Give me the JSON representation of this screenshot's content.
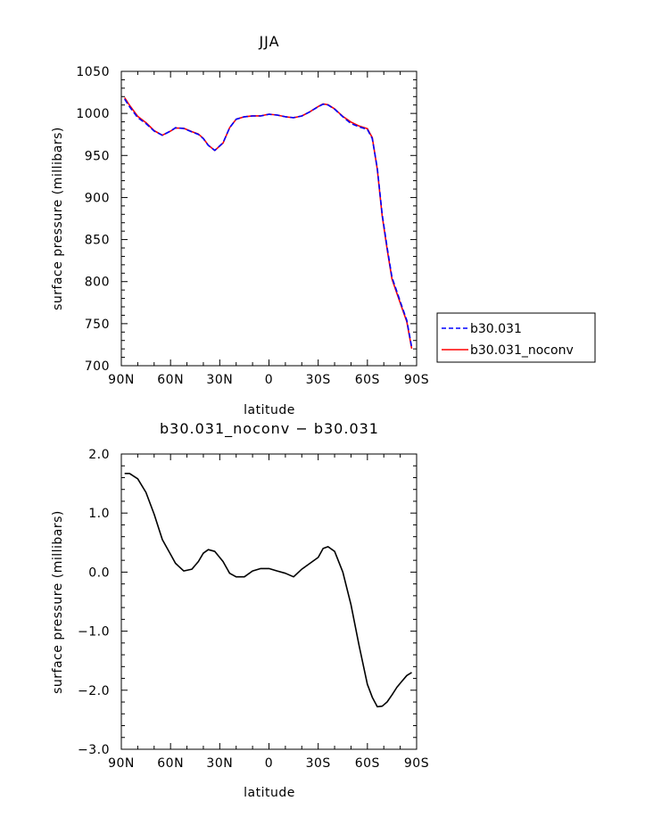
{
  "chart_data": [
    {
      "type": "line",
      "title": "JJA",
      "xlabel": "latitude",
      "ylabel": "surface pressure (millibars)",
      "xlim": [
        90,
        -90
      ],
      "ylim": [
        700,
        1050
      ],
      "xticks": [
        90,
        60,
        30,
        0,
        -30,
        -60,
        -90
      ],
      "xticklabels": [
        "90N",
        "60N",
        "30N",
        "0",
        "30S",
        "60S",
        "90S"
      ],
      "yticks": [
        700,
        750,
        800,
        850,
        900,
        950,
        1000,
        1050
      ],
      "yticklabels": [
        "700",
        "750",
        "800",
        "850",
        "900",
        "950",
        "1000",
        "1050"
      ],
      "legend_position": "outside-right",
      "series": [
        {
          "name": "b30.031",
          "color": "#0000ff",
          "dashed": true,
          "x": [
            88,
            85,
            80,
            75,
            70,
            65,
            60,
            57,
            52,
            47,
            43,
            40,
            37,
            33,
            28,
            24,
            20,
            15,
            10,
            5,
            0,
            -5,
            -10,
            -15,
            -20,
            -25,
            -30,
            -33,
            -36,
            -40,
            -45,
            -50,
            -55,
            -60,
            -63,
            -66,
            -69,
            -72,
            -75,
            -78,
            -81,
            -84,
            -87
          ],
          "values": [
            1017,
            1008,
            995,
            988,
            979,
            974,
            979,
            983,
            982,
            978,
            975,
            970,
            962,
            956,
            965,
            983,
            993,
            996,
            997,
            997,
            999,
            998,
            996,
            995,
            997,
            1002,
            1008,
            1011,
            1010,
            1005,
            996,
            988,
            984,
            981,
            970,
            935,
            880,
            841,
            805,
            788,
            771,
            754,
            722
          ]
        },
        {
          "name": "b30.031_noconv",
          "color": "#ff0000",
          "dashed": false,
          "x": [
            88,
            85,
            80,
            75,
            70,
            65,
            60,
            57,
            52,
            47,
            43,
            40,
            37,
            33,
            28,
            24,
            20,
            15,
            10,
            5,
            0,
            -5,
            -10,
            -15,
            -20,
            -25,
            -30,
            -33,
            -36,
            -40,
            -45,
            -50,
            -55,
            -60,
            -63,
            -66,
            -69,
            -72,
            -75,
            -78,
            -81,
            -84,
            -87
          ],
          "values": [
            1018.7,
            1009.7,
            996.4,
            989,
            979.5,
            974.1,
            979,
            982.6,
            982.3,
            978.3,
            975.4,
            970.3,
            962.2,
            955.9,
            964.7,
            983,
            993,
            996,
            997.1,
            997.1,
            999.1,
            998,
            996,
            994.9,
            997,
            1002.1,
            1008.2,
            1011.3,
            1010.3,
            1005.4,
            996.4,
            989.8,
            985,
            981.8,
            971.2,
            933.5,
            878.2,
            838.8,
            803,
            786,
            769.2,
            752.4,
            720.3
          ]
        }
      ]
    },
    {
      "type": "line",
      "title": "b30.031_noconv − b30.031",
      "xlabel": "latitude",
      "ylabel": "surface pressure (millibars)",
      "xlim": [
        90,
        -90
      ],
      "ylim": [
        -3.0,
        2.0
      ],
      "xticks": [
        90,
        60,
        30,
        0,
        -30,
        -60,
        -90
      ],
      "xticklabels": [
        "90N",
        "60N",
        "30N",
        "0",
        "30S",
        "60S",
        "90S"
      ],
      "yticks": [
        -3.0,
        -2.0,
        -1.0,
        0.0,
        1.0,
        2.0
      ],
      "yticklabels": [
        "−3.0",
        "−2.0",
        "−1.0",
        "0.0",
        "1.0",
        "2.0"
      ],
      "series": [
        {
          "color": "#000000",
          "dashed": false,
          "x": [
            88,
            85,
            80,
            75,
            70,
            65,
            60,
            57,
            52,
            47,
            43,
            40,
            37,
            33,
            28,
            24,
            20,
            15,
            10,
            5,
            0,
            -5,
            -10,
            -15,
            -20,
            -25,
            -30,
            -33,
            -36,
            -40,
            -45,
            -50,
            -55,
            -60,
            -63,
            -66,
            -69,
            -72,
            -75,
            -78,
            -81,
            -84,
            -87
          ],
          "values": [
            1.67,
            1.67,
            1.58,
            1.35,
            0.98,
            0.55,
            0.3,
            0.15,
            0.02,
            0.05,
            0.18,
            0.32,
            0.38,
            0.35,
            0.18,
            -0.02,
            -0.08,
            -0.08,
            0.02,
            0.06,
            0.06,
            0.02,
            -0.02,
            -0.08,
            0.05,
            0.15,
            0.25,
            0.4,
            0.43,
            0.35,
            0.0,
            -0.55,
            -1.25,
            -1.9,
            -2.12,
            -2.28,
            -2.27,
            -2.2,
            -2.08,
            -1.95,
            -1.85,
            -1.75,
            -1.7
          ]
        }
      ]
    }
  ],
  "legend": {
    "entries": [
      {
        "label": "b30.031",
        "color": "#0000ff",
        "dashed": true
      },
      {
        "label": "b30.031_noconv",
        "color": "#ff0000",
        "dashed": false
      }
    ]
  }
}
